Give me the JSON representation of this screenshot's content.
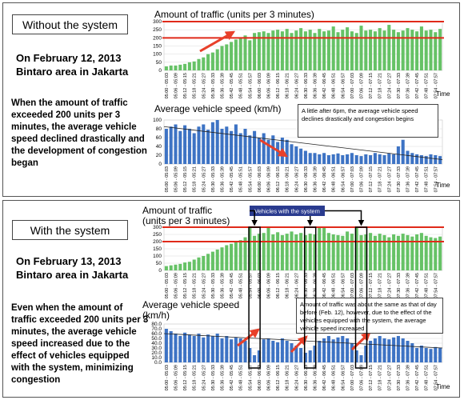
{
  "panels": [
    {
      "heading": "Without the system",
      "date": "On February 12, 2013",
      "area": "Bintaro area in Jakarta",
      "description": "When the amount of traffic exceeded 200 units per 3 minutes, the average vehicle speed declined drastically and the development of congestion began"
    },
    {
      "heading": "With the system",
      "date": "On February 13, 2013",
      "area": "Bintaro area in Jakarta",
      "description": "Even when the amount of traffic exceeded 200 units per 3 minutes, the average vehicle speed increased due to the effect of vehicles equipped with the system, minimizing congestion"
    }
  ],
  "chart_data": [
    {
      "type": "bar",
      "title_lines": [
        "Amount of traffic (units per 3 minutes)"
      ],
      "xlabel": "Time",
      "color": "#66c266",
      "grid": true,
      "categories": [
        "05:00 - 05:03",
        null,
        "05:06 - 05:09",
        null,
        "05:12 - 05:15",
        null,
        "05:18 - 05:21",
        null,
        "05:24 - 05:27",
        null,
        "05:30 - 05:33",
        null,
        "05:36 - 05:39",
        null,
        "05:42 - 05:45",
        null,
        "05:48 - 05:51",
        null,
        "05:54 - 05:57",
        null,
        "06:00 - 06:03",
        null,
        "06:06 - 06:09",
        null,
        "06:12 - 06:15",
        null,
        "06:18 - 06:21",
        null,
        "06:24 - 06:27",
        null,
        "06:30 - 06:33",
        null,
        "06:36 - 06:39",
        null,
        "06:42 - 06:45",
        null,
        "06:48 - 06:51",
        null,
        "06:54 - 06:57",
        null,
        "07:00 - 07:03",
        null,
        "07:06 - 07:09",
        null,
        "07:12 - 07:15",
        null,
        "07:18 - 07:21",
        null,
        "07:24 - 07:27",
        null,
        "07:30 - 07:33",
        null,
        "07:36 - 07:39",
        null,
        "07:42 - 07:45",
        null,
        "07:48 - 07:51",
        null,
        "07:54 - 07:57",
        null
      ],
      "values": [
        25,
        30,
        30,
        35,
        40,
        50,
        55,
        70,
        80,
        100,
        110,
        130,
        150,
        160,
        175,
        190,
        200,
        215,
        185,
        230,
        235,
        240,
        230,
        245,
        250,
        240,
        255,
        230,
        245,
        260,
        240,
        250,
        230,
        255,
        240,
        245,
        270,
        235,
        250,
        265,
        240,
        230,
        275,
        245,
        250,
        240,
        260,
        245,
        280,
        250,
        235,
        245,
        260,
        250,
        240,
        270,
        245,
        250,
        235,
        255
      ],
      "ylim": [
        0,
        300
      ],
      "yticks": [
        0,
        50,
        100,
        150,
        200,
        250,
        300
      ],
      "ref_lines": [
        200,
        300
      ]
    },
    {
      "type": "bar",
      "title_lines": [
        "Average vehicle speed (km/h)"
      ],
      "xlabel": "Time",
      "color": "#3d73c4",
      "grid": true,
      "annotation": "A little after 6pm, the average vehicle speed declines drastically and congestion begins",
      "categories": [
        "05:00 - 05:03",
        null,
        "05:06 - 05:09",
        null,
        "05:12 - 05:15",
        null,
        "05:18 - 05:21",
        null,
        "05:24 - 05:27",
        null,
        "05:30 - 05:33",
        null,
        "05:36 - 05:39",
        null,
        "05:42 - 05:45",
        null,
        "05:48 - 05:51",
        null,
        "05:54 - 05:57",
        null,
        "06:00 - 06:03",
        null,
        "06:06 - 06:09",
        null,
        "06:12 - 06:15",
        null,
        "06:18 - 06:21",
        null,
        "06:24 - 06:27",
        null,
        "06:30 - 06:33",
        null,
        "06:36 - 06:39",
        null,
        "06:42 - 06:45",
        null,
        "06:48 - 06:51",
        null,
        "06:54 - 06:57",
        null,
        "07:00 - 07:03",
        null,
        "07:06 - 07:09",
        null,
        "07:12 - 07:15",
        null,
        "07:18 - 07:21",
        null,
        "07:24 - 07:27",
        null,
        "07:30 - 07:33",
        null,
        "07:36 - 07:39",
        null,
        "07:42 - 07:45",
        null,
        "07:48 - 07:51",
        null,
        "07:54 - 07:57",
        null
      ],
      "values": [
        80,
        85,
        90,
        75,
        88,
        80,
        70,
        85,
        90,
        78,
        95,
        100,
        80,
        85,
        75,
        90,
        70,
        80,
        65,
        75,
        60,
        70,
        55,
        65,
        50,
        60,
        55,
        45,
        40,
        35,
        30,
        25,
        25,
        22,
        25,
        20,
        22,
        24,
        20,
        22,
        25,
        20,
        18,
        22,
        20,
        25,
        22,
        20,
        24,
        22,
        40,
        55,
        30,
        25,
        22,
        20,
        18,
        22,
        20,
        18
      ],
      "ylim": [
        0,
        100
      ],
      "yticks": [
        0,
        20,
        40,
        60,
        80,
        100
      ]
    },
    {
      "type": "bar",
      "title_lines": [
        "Amount of traffic",
        "(units per 3 minutes)"
      ],
      "color": "#66c266",
      "grid": true,
      "callout": "Vehicles with the system",
      "categories": [
        "05:00 - 05:03",
        null,
        "05:06 - 05:09",
        null,
        "05:12 - 05:15",
        null,
        "05:18 - 05:21",
        null,
        "05:24 - 05:27",
        null,
        "05:30 - 05:33",
        null,
        "05:36 - 05:39",
        null,
        "05:42 - 05:45",
        null,
        "05:48 - 05:51",
        null,
        "05:54 - 05:57",
        null,
        "06:00 - 06:03",
        null,
        "06:06 - 06:09",
        null,
        "06:12 - 06:15",
        null,
        "06:18 - 06:21",
        null,
        "06:24 - 06:27",
        null,
        "06:30 - 06:33",
        null,
        "06:36 - 06:39",
        null,
        "06:42 - 06:45",
        null,
        "06:48 - 06:51",
        null,
        "06:54 - 06:57",
        null,
        "07:00 - 07:03",
        null,
        "07:06 - 07:09",
        null,
        "07:12 - 07:15",
        null,
        "07:18 - 07:21",
        null,
        "07:24 - 07:27",
        null,
        "07:30 - 07:33",
        null,
        "07:36 - 07:39",
        null,
        "07:42 - 07:45",
        null,
        "07:48 - 07:51",
        null,
        "07:54 - 07:57",
        null
      ],
      "values": [
        30,
        35,
        40,
        45,
        55,
        60,
        75,
        90,
        100,
        115,
        130,
        145,
        160,
        175,
        185,
        200,
        210,
        230,
        300,
        240,
        255,
        260,
        300,
        250,
        265,
        245,
        255,
        270,
        250,
        260,
        245,
        255,
        250,
        300,
        295,
        260,
        250,
        245,
        240,
        270,
        255,
        300,
        245,
        250,
        260,
        240,
        255,
        245,
        230,
        250,
        240,
        255,
        245,
        235,
        250,
        260,
        240,
        230,
        225,
        235
      ],
      "ylim": [
        0,
        300
      ],
      "yticks": [
        0,
        50,
        100,
        150,
        200,
        250,
        300
      ],
      "ref_lines": [
        200,
        300
      ]
    },
    {
      "type": "bar",
      "title_lines": [
        "Average vehicle speed",
        "(km/h)"
      ],
      "xlabel": "Time",
      "color": "#3d73c4",
      "grid": true,
      "annotation": "Amount of traffic was about the same as that of day before (Feb. 12), however, due to the effect of the vehicles equipped with the system, the average vehicle speed increased",
      "categories": [
        "05:00 - 05:03",
        null,
        "05:06 - 05:09",
        null,
        "05:12 - 05:15",
        null,
        "05:18 - 05:21",
        null,
        "05:24 - 05:27",
        null,
        "05:30 - 05:33",
        null,
        "05:36 - 05:39",
        null,
        "05:42 - 05:45",
        null,
        "05:48 - 05:51",
        null,
        "05:54 - 05:57",
        null,
        "06:00 - 06:03",
        null,
        "06:06 - 06:09",
        null,
        "06:12 - 06:15",
        null,
        "06:18 - 06:21",
        null,
        "06:24 - 06:27",
        null,
        "06:30 - 06:33",
        null,
        "06:36 - 06:39",
        null,
        "06:42 - 06:45",
        null,
        "06:48 - 06:51",
        null,
        "06:54 - 06:57",
        null,
        "07:00 - 07:03",
        null,
        "07:06 - 07:09",
        null,
        "07:12 - 07:15",
        null,
        "07:18 - 07:21",
        null,
        "07:24 - 07:27",
        null,
        "07:30 - 07:33",
        null,
        "07:36 - 07:39",
        null,
        "07:42 - 07:45",
        null,
        "07:48 - 07:51",
        null,
        "07:54 - 07:57",
        null
      ],
      "values": [
        70,
        65,
        60,
        55,
        62,
        58,
        55,
        60,
        52,
        58,
        55,
        60,
        50,
        55,
        48,
        52,
        50,
        45,
        30,
        15,
        25,
        48,
        50,
        45,
        42,
        50,
        45,
        40,
        35,
        30,
        20,
        25,
        35,
        45,
        50,
        55,
        48,
        52,
        55,
        50,
        40,
        25,
        15,
        35,
        45,
        50,
        55,
        50,
        48,
        52,
        55,
        50,
        45,
        40,
        30,
        35,
        30,
        28,
        32,
        30
      ],
      "ylim": [
        0,
        80
      ],
      "yticks": [
        {
          "value": 0,
          "label": "0.0"
        },
        {
          "value": 10,
          "label": "10.0"
        },
        {
          "value": 20,
          "label": "20.0"
        },
        {
          "value": 30,
          "label": "30.0"
        },
        {
          "value": 40,
          "label": "40.0"
        },
        {
          "value": 50,
          "label": "50.0"
        },
        {
          "value": 60,
          "label": "60.0"
        },
        {
          "value": 70,
          "label": "70.0"
        },
        {
          "value": 80,
          "label": "80.0"
        }
      ]
    }
  ]
}
